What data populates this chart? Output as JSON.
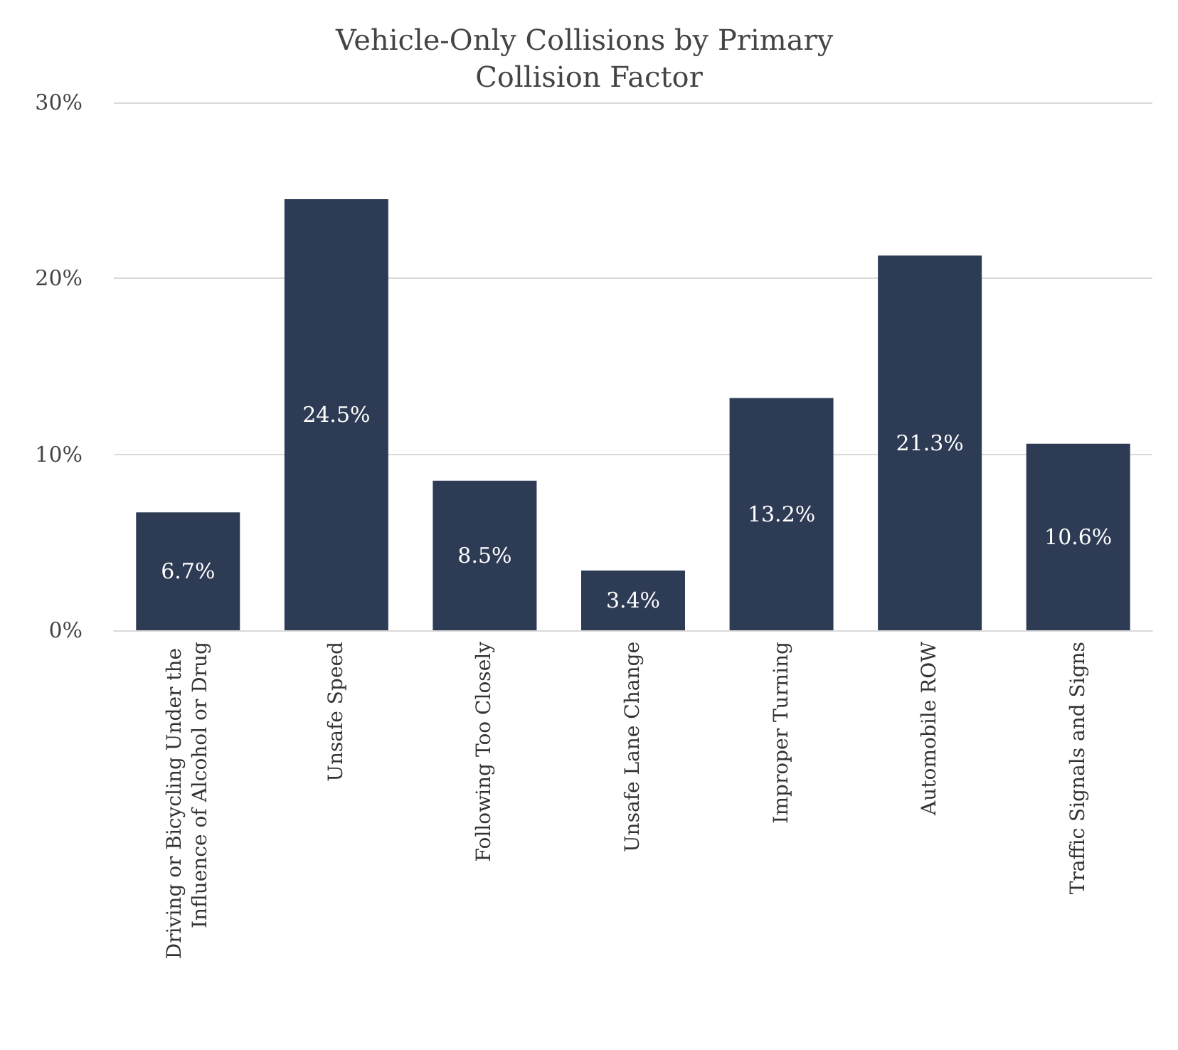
{
  "chart_data": {
    "type": "bar",
    "title": "Vehicle-Only Collisions by Primary Collision Factor",
    "categories": [
      "Driving or Bicycling Under the Influence of Alcohol or Drug",
      "Unsafe Speed",
      "Following Too Closely",
      "Unsafe Lane Change",
      "Improper Turning",
      "Automobile ROW",
      "Traffic Signals and Signs"
    ],
    "values": [
      6.7,
      24.5,
      8.5,
      3.4,
      13.2,
      21.3,
      10.6
    ],
    "value_labels": [
      "6.7%",
      "24.5%",
      "8.5%",
      "3.4%",
      "13.2%",
      "21.3%",
      "10.6%"
    ],
    "color": "#2e3b55",
    "ylim": [
      0,
      30
    ],
    "yticks": [
      {
        "value": 0,
        "label": "0%"
      },
      {
        "value": 10,
        "label": "10%"
      },
      {
        "value": 20,
        "label": "20%"
      },
      {
        "value": 30,
        "label": "30%"
      }
    ],
    "grid": "y"
  }
}
